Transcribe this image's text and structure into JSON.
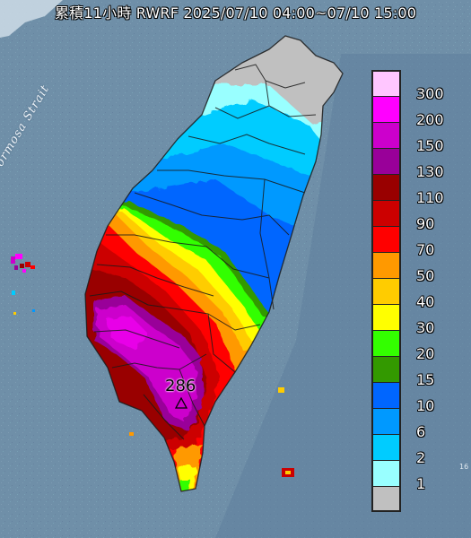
{
  "header": {
    "title": "累積11小時 RWRF 2025/07/10 04:00~07/10 15:00"
  },
  "map": {
    "strait_label": "Formosa Strait",
    "max_value_label": "286",
    "max_marker_icon": "triangle-marker-icon",
    "corner_text": "16",
    "colors": {
      "sea": "#6f8fa8",
      "no_data_land": "#c0c0c0",
      "county_border": "#1a1a1a"
    }
  },
  "legend": {
    "items": [
      {
        "label": "300",
        "color": "#ffc6ff"
      },
      {
        "label": "200",
        "color": "#ff00ff"
      },
      {
        "label": "150",
        "color": "#cc00cc"
      },
      {
        "label": "130",
        "color": "#990099"
      },
      {
        "label": "110",
        "color": "#990000"
      },
      {
        "label": "90",
        "color": "#cc0000"
      },
      {
        "label": "70",
        "color": "#ff0000"
      },
      {
        "label": "50",
        "color": "#ff9900"
      },
      {
        "label": "40",
        "color": "#ffcc00"
      },
      {
        "label": "30",
        "color": "#ffff00"
      },
      {
        "label": "20",
        "color": "#33ff00"
      },
      {
        "label": "15",
        "color": "#339900"
      },
      {
        "label": "10",
        "color": "#0066ff"
      },
      {
        "label": "6",
        "color": "#0099ff"
      },
      {
        "label": "2",
        "color": "#00ccff"
      },
      {
        "label": "1",
        "color": "#99ffff"
      },
      {
        "label": "",
        "color": "#c0c0c0"
      }
    ]
  }
}
